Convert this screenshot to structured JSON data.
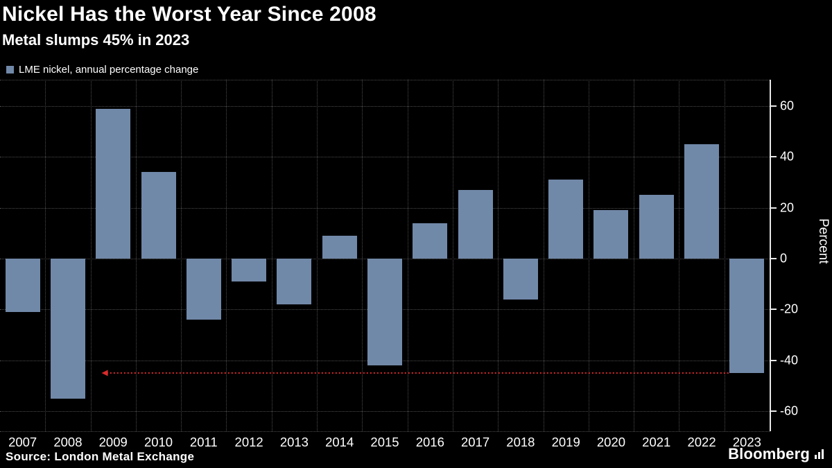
{
  "header": {
    "title": "Nickel Has the Worst Year Since 2008",
    "subtitle": "Metal slumps 45% in 2023",
    "legend_label": "LME nickel, annual percentage change"
  },
  "footer": {
    "source": "Source: London Metal Exchange",
    "brand": "Bloomberg"
  },
  "colors": {
    "background": "#000000",
    "bar": "#7189a9",
    "grid": "#4d4d4d",
    "axis": "#e8e8e8",
    "text": "#ffffff",
    "annotation": "#d92b2b"
  },
  "chart_data": {
    "type": "bar",
    "title": "Nickel Has the Worst Year Since 2008",
    "subtitle": "Metal slumps 45% in 2023",
    "series_name": "LME nickel, annual percentage change",
    "categories": [
      "2007",
      "2008",
      "2009",
      "2010",
      "2011",
      "2012",
      "2013",
      "2014",
      "2015",
      "2016",
      "2017",
      "2018",
      "2019",
      "2020",
      "2021",
      "2022",
      "2023"
    ],
    "values": [
      -21,
      -55,
      59,
      34,
      -24,
      -9,
      -18,
      9,
      -42,
      14,
      27,
      -16,
      31,
      19,
      25,
      45,
      -45
    ],
    "xlabel": "",
    "ylabel": "Percent",
    "ylim": [
      -60,
      60
    ],
    "yticks": [
      60,
      40,
      20,
      0,
      -20,
      -40,
      -60
    ],
    "grid": true,
    "legend_position": "top-left",
    "annotation": {
      "type": "arrow-left-dotted",
      "y": -45,
      "from_category": "2023",
      "to_category": "2009",
      "meaning": "2023 decline matches worst since 2008"
    }
  }
}
